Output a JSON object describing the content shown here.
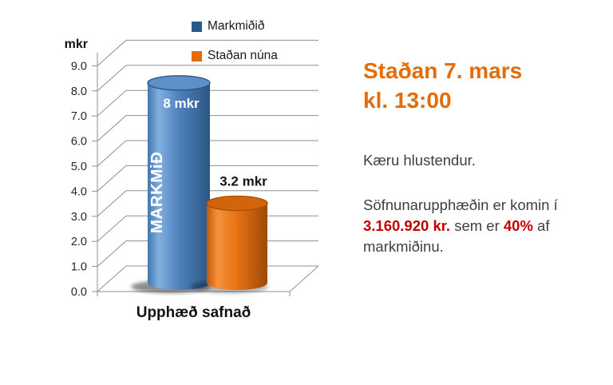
{
  "chart_data": {
    "type": "bar",
    "subtype": "3d-cylinder",
    "title": "",
    "categories": [
      "Upphæð safnað"
    ],
    "series": [
      {
        "name": "Markmiðið",
        "values": [
          8
        ],
        "color": "#4F81BD",
        "legend_color": "#27598C",
        "data_label": "8 mkr",
        "label_inside": true,
        "inside_label": "MARKMiÐ"
      },
      {
        "name": "Staðan núna",
        "values": [
          3.2
        ],
        "color": "#E36C09",
        "legend_color": "#E36C09",
        "data_label": "3.2 mkr",
        "label_inside": false,
        "inside_label": ""
      }
    ],
    "y_axis_title": "mkr",
    "x_axis_label": "Upphæð safnað",
    "ylim": [
      0,
      9
    ],
    "y_tick_step": 1,
    "y_tick_labels": [
      "0.0",
      "1.0",
      "2.0",
      "3.0",
      "4.0",
      "5.0",
      "6.0",
      "7.0",
      "8.0",
      "9.0"
    ],
    "grid": true,
    "grid_color": "#8F8F8F",
    "legend_position": "top"
  },
  "side_panel": {
    "heading_line1": "Staðan 7. mars",
    "heading_line2": "kl. 13:00",
    "heading_color": "#E46C0A",
    "greeting": "Kæru hlustendur.",
    "para_before": "Söfnunarupphæðin er komin í ",
    "para_amount": "3.160.920 kr.",
    "para_mid": " sem er ",
    "para_percent": "40%",
    "para_after": " af markmiðinu.",
    "accent_red": "#C00000"
  }
}
